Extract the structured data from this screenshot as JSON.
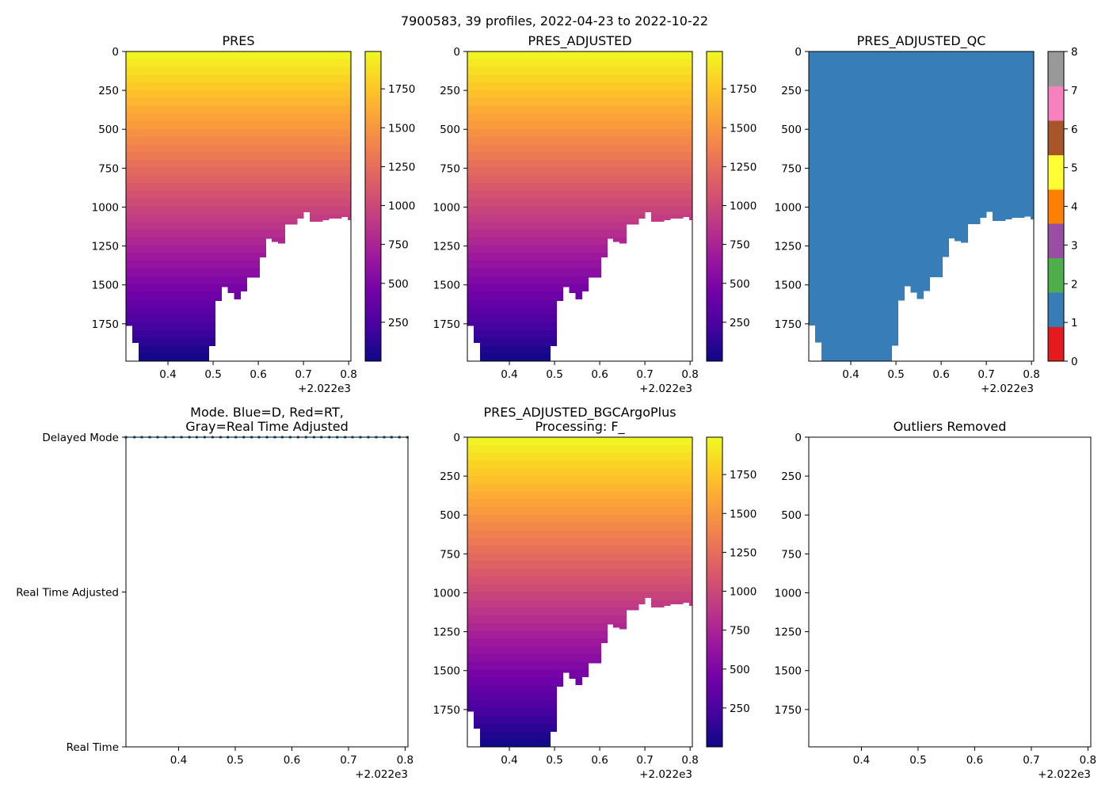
{
  "figure": {
    "suptitle": "7900583, 39 profiles, 2022-04-23 to 2022-10-22"
  },
  "colors": {
    "plasma_stops": [
      "#0d0887",
      "#46039f",
      "#7201a8",
      "#9c179e",
      "#bd3786",
      "#d8576b",
      "#ed7953",
      "#fb9f3a",
      "#fdca26",
      "#f0f921"
    ],
    "qc_colors": [
      "#e41a1c",
      "#377eb8",
      "#4daf4a",
      "#984ea3",
      "#ff7f00",
      "#ffff33",
      "#a65628",
      "#f781bf",
      "#999999"
    ],
    "mode_dots": "#1f77b4"
  },
  "chart_data": [
    {
      "id": "pres",
      "type": "heatmap",
      "title": "PRES",
      "x_range": [
        0.307,
        0.805
      ],
      "x_ticks": [
        0.4,
        0.5,
        0.6,
        0.7,
        0.8
      ],
      "x_tick_labels": [
        "0.4",
        "0.5",
        "0.6",
        "0.7",
        "0.8"
      ],
      "x_offset_label": "+2.022e3",
      "y_range": [
        1990,
        0
      ],
      "y_ticks": [
        0,
        250,
        500,
        750,
        1000,
        1250,
        1500,
        1750
      ],
      "y_tick_labels": [
        "0",
        "250",
        "500",
        "750",
        "1000",
        "1250",
        "1500",
        "1750"
      ],
      "colorbar": {
        "type": "continuous",
        "range": [
          0,
          1990
        ],
        "ticks": [
          250,
          500,
          750,
          1000,
          1250,
          1500,
          1750
        ],
        "tick_labels": [
          "250",
          "500",
          "750",
          "1000",
          "1250",
          "1500",
          "1750"
        ]
      },
      "fill": "value",
      "bin_dates": [
        0.307,
        0.321,
        0.335,
        0.349,
        0.363,
        0.377,
        0.391,
        0.405,
        0.419,
        0.433,
        0.447,
        0.461,
        0.475,
        0.49,
        0.504,
        0.518,
        0.532,
        0.546,
        0.56,
        0.574,
        0.588,
        0.602,
        0.616,
        0.63,
        0.644,
        0.658,
        0.672,
        0.686,
        0.7,
        0.714,
        0.728,
        0.742,
        0.756,
        0.77,
        0.784,
        0.798,
        0.805
      ],
      "max_depth": [
        1760,
        1870,
        1990,
        1990,
        1990,
        1990,
        1990,
        1990,
        1990,
        1990,
        1990,
        1990,
        1990,
        1890,
        1600,
        1510,
        1550,
        1590,
        1540,
        1450,
        1450,
        1320,
        1200,
        1220,
        1230,
        1110,
        1110,
        1070,
        1030,
        1090,
        1090,
        1080,
        1070,
        1070,
        1060,
        1080,
        1050
      ]
    },
    {
      "id": "pres_adj",
      "type": "heatmap",
      "title": "PRES_ADJUSTED",
      "x_range": [
        0.307,
        0.805
      ],
      "x_ticks": [
        0.4,
        0.5,
        0.6,
        0.7,
        0.8
      ],
      "x_tick_labels": [
        "0.4",
        "0.5",
        "0.6",
        "0.7",
        "0.8"
      ],
      "x_offset_label": "+2.022e3",
      "y_range": [
        1990,
        0
      ],
      "y_ticks": [
        0,
        250,
        500,
        750,
        1000,
        1250,
        1500,
        1750
      ],
      "y_tick_labels": [
        "0",
        "250",
        "500",
        "750",
        "1000",
        "1250",
        "1500",
        "1750"
      ],
      "colorbar": {
        "type": "continuous",
        "range": [
          0,
          1990
        ],
        "ticks": [
          250,
          500,
          750,
          1000,
          1250,
          1500,
          1750
        ],
        "tick_labels": [
          "250",
          "500",
          "750",
          "1000",
          "1250",
          "1500",
          "1750"
        ]
      },
      "fill": "value",
      "bin_dates": [
        0.307,
        0.321,
        0.335,
        0.349,
        0.363,
        0.377,
        0.391,
        0.405,
        0.419,
        0.433,
        0.447,
        0.461,
        0.475,
        0.49,
        0.504,
        0.518,
        0.532,
        0.546,
        0.56,
        0.574,
        0.588,
        0.602,
        0.616,
        0.63,
        0.644,
        0.658,
        0.672,
        0.686,
        0.7,
        0.714,
        0.728,
        0.742,
        0.756,
        0.77,
        0.784,
        0.798,
        0.805
      ],
      "max_depth": [
        1760,
        1870,
        1990,
        1990,
        1990,
        1990,
        1990,
        1990,
        1990,
        1990,
        1990,
        1990,
        1990,
        1890,
        1600,
        1510,
        1550,
        1590,
        1540,
        1450,
        1450,
        1320,
        1200,
        1220,
        1230,
        1110,
        1110,
        1070,
        1030,
        1090,
        1090,
        1080,
        1070,
        1070,
        1060,
        1080,
        1050
      ]
    },
    {
      "id": "pres_adj_qc",
      "type": "heatmap",
      "title": "PRES_ADJUSTED_QC",
      "x_range": [
        0.307,
        0.805
      ],
      "x_ticks": [
        0.4,
        0.5,
        0.6,
        0.7,
        0.8
      ],
      "x_tick_labels": [
        "0.4",
        "0.5",
        "0.6",
        "0.7",
        "0.8"
      ],
      "x_offset_label": "+2.022e3",
      "y_range": [
        1990,
        0
      ],
      "y_ticks": [
        0,
        250,
        500,
        750,
        1000,
        1250,
        1500,
        1750
      ],
      "y_tick_labels": [
        "0",
        "250",
        "500",
        "750",
        "1000",
        "1250",
        "1500",
        "1750"
      ],
      "colorbar": {
        "type": "categorical",
        "range": [
          0,
          8
        ],
        "ticks": [
          0,
          1,
          2,
          3,
          4,
          5,
          6,
          7,
          8
        ],
        "tick_labels": [
          "0",
          "1",
          "2",
          "3",
          "4",
          "5",
          "6",
          "7",
          "8"
        ]
      },
      "fill": "qc",
      "qc_value": 1,
      "bin_dates": [
        0.307,
        0.321,
        0.335,
        0.349,
        0.363,
        0.377,
        0.391,
        0.405,
        0.419,
        0.433,
        0.447,
        0.461,
        0.475,
        0.49,
        0.504,
        0.518,
        0.532,
        0.546,
        0.56,
        0.574,
        0.588,
        0.602,
        0.616,
        0.63,
        0.644,
        0.658,
        0.672,
        0.686,
        0.7,
        0.714,
        0.728,
        0.742,
        0.756,
        0.77,
        0.784,
        0.798,
        0.805
      ],
      "max_depth": [
        1760,
        1870,
        1990,
        1990,
        1990,
        1990,
        1990,
        1990,
        1990,
        1990,
        1990,
        1990,
        1990,
        1890,
        1600,
        1510,
        1550,
        1590,
        1540,
        1450,
        1450,
        1320,
        1200,
        1220,
        1230,
        1110,
        1110,
        1070,
        1030,
        1090,
        1090,
        1080,
        1070,
        1070,
        1060,
        1080,
        1050
      ]
    },
    {
      "id": "mode",
      "type": "scatter",
      "title": "Mode. Blue=D, Red=RT,\nGray=Real Time Adjusted",
      "x_range": [
        0.307,
        0.805
      ],
      "x_ticks": [
        0.4,
        0.5,
        0.6,
        0.7,
        0.8
      ],
      "x_tick_labels": [
        "0.4",
        "0.5",
        "0.6",
        "0.7",
        "0.8"
      ],
      "x_offset_label": "+2.022e3",
      "y_range": [
        0,
        2
      ],
      "y_ticks": [
        0,
        1,
        2
      ],
      "y_tick_labels": [
        "Real Time",
        "Real Time Adjusted",
        "Delayed Mode"
      ],
      "series": [
        {
          "name": "D",
          "y": 2,
          "x": [
            0.307,
            0.322,
            0.335,
            0.349,
            0.363,
            0.377,
            0.391,
            0.405,
            0.419,
            0.432,
            0.446,
            0.46,
            0.474,
            0.487,
            0.501,
            0.515,
            0.529,
            0.542,
            0.556,
            0.57,
            0.583,
            0.597,
            0.611,
            0.625,
            0.639,
            0.652,
            0.666,
            0.68,
            0.694,
            0.707,
            0.721,
            0.735,
            0.749,
            0.763,
            0.776,
            0.79,
            0.804,
            0.776,
            0.79
          ]
        }
      ]
    },
    {
      "id": "pres_bgc",
      "type": "heatmap",
      "title": "PRES_ADJUSTED_BGCArgoPlus\nProcessing: F_",
      "x_range": [
        0.307,
        0.805
      ],
      "x_ticks": [
        0.4,
        0.5,
        0.6,
        0.7,
        0.8
      ],
      "x_tick_labels": [
        "0.4",
        "0.5",
        "0.6",
        "0.7",
        "0.8"
      ],
      "x_offset_label": "+2.022e3",
      "y_range": [
        1990,
        0
      ],
      "y_ticks": [
        0,
        250,
        500,
        750,
        1000,
        1250,
        1500,
        1750
      ],
      "y_tick_labels": [
        "0",
        "250",
        "500",
        "750",
        "1000",
        "1250",
        "1500",
        "1750"
      ],
      "colorbar": {
        "type": "continuous",
        "range": [
          0,
          1990
        ],
        "ticks": [
          250,
          500,
          750,
          1000,
          1250,
          1500,
          1750
        ],
        "tick_labels": [
          "250",
          "500",
          "750",
          "1000",
          "1250",
          "1500",
          "1750"
        ]
      },
      "fill": "value",
      "bin_dates": [
        0.307,
        0.321,
        0.335,
        0.349,
        0.363,
        0.377,
        0.391,
        0.405,
        0.419,
        0.433,
        0.447,
        0.461,
        0.475,
        0.49,
        0.504,
        0.518,
        0.532,
        0.546,
        0.56,
        0.574,
        0.588,
        0.602,
        0.616,
        0.63,
        0.644,
        0.658,
        0.672,
        0.686,
        0.7,
        0.714,
        0.728,
        0.742,
        0.756,
        0.77,
        0.784,
        0.798,
        0.805
      ],
      "max_depth": [
        1760,
        1870,
        1990,
        1990,
        1990,
        1990,
        1990,
        1990,
        1990,
        1990,
        1990,
        1990,
        1990,
        1890,
        1600,
        1510,
        1550,
        1590,
        1540,
        1450,
        1450,
        1320,
        1200,
        1220,
        1230,
        1110,
        1110,
        1070,
        1030,
        1090,
        1090,
        1080,
        1070,
        1070,
        1060,
        1080,
        1050
      ]
    },
    {
      "id": "outliers",
      "type": "scatter",
      "title": "Outliers Removed",
      "x_range": [
        0.307,
        0.805
      ],
      "x_ticks": [
        0.4,
        0.5,
        0.6,
        0.7,
        0.8
      ],
      "x_tick_labels": [
        "0.4",
        "0.5",
        "0.6",
        "0.7",
        "0.8"
      ],
      "x_offset_label": "+2.022e3",
      "y_range": [
        1990,
        0
      ],
      "y_ticks": [
        0,
        250,
        500,
        750,
        1000,
        1250,
        1500,
        1750
      ],
      "y_tick_labels": [
        "0",
        "250",
        "500",
        "750",
        "1000",
        "1250",
        "1500",
        "1750"
      ],
      "series": []
    }
  ]
}
